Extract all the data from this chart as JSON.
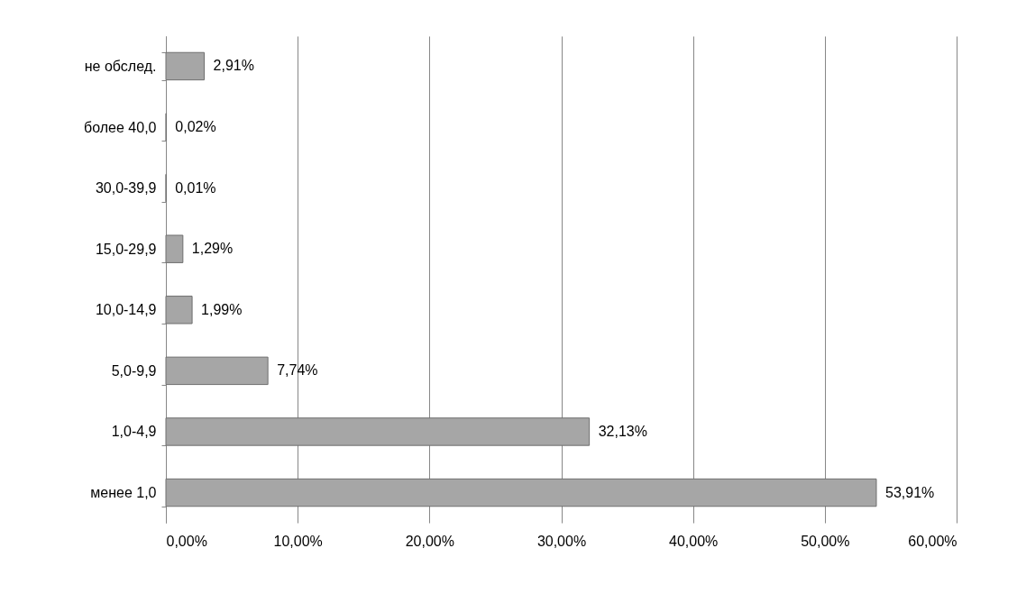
{
  "chart_data": {
    "type": "bar",
    "orientation": "horizontal",
    "categories": [
      "не обслед.",
      "более 40,0",
      "30,0-39,9",
      "15,0-29,9",
      "10,0-14,9",
      "5,0-9,9",
      "1,0-4,9",
      "менее 1,0"
    ],
    "values": [
      2.91,
      0.02,
      0.01,
      1.29,
      1.99,
      7.74,
      32.13,
      53.91
    ],
    "value_labels": [
      "2,91%",
      "0,02%",
      "0,01%",
      "1,29%",
      "1,99%",
      "7,74%",
      "32,13%",
      "53,91%"
    ],
    "color": "#a6a6a6",
    "xlim": [
      0,
      60
    ],
    "xticks": [
      {
        "value": 0,
        "label": "0,00%"
      },
      {
        "value": 10,
        "label": "10,00%"
      },
      {
        "value": 20,
        "label": "20,00%"
      },
      {
        "value": 30,
        "label": "30,00%"
      },
      {
        "value": 40,
        "label": "40,00%"
      },
      {
        "value": 50,
        "label": "50,00%"
      },
      {
        "value": 60,
        "label": "60,00%"
      }
    ],
    "grid": "x"
  }
}
